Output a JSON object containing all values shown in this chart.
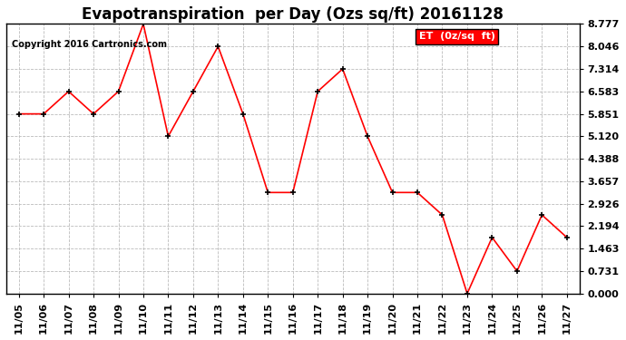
{
  "title": "Evapotranspiration  per Day (Ozs sq/ft) 20161128",
  "copyright": "Copyright 2016 Cartronics.com",
  "legend_label": "ET  (0z/sq  ft)",
  "x_labels": [
    "11/05",
    "11/06",
    "11/07",
    "11/08",
    "11/09",
    "11/10",
    "11/11",
    "11/12",
    "11/13",
    "11/14",
    "11/15",
    "11/16",
    "11/17",
    "11/18",
    "11/19",
    "11/20",
    "11/21",
    "11/22",
    "11/23",
    "11/24",
    "11/25",
    "11/26",
    "11/27"
  ],
  "y_values": [
    5.851,
    5.851,
    6.583,
    5.851,
    6.583,
    8.777,
    5.12,
    6.583,
    8.046,
    5.851,
    3.291,
    3.291,
    6.583,
    7.314,
    5.12,
    3.291,
    3.291,
    2.56,
    0.0,
    1.828,
    0.731,
    2.56,
    1.828
  ],
  "y_ticks": [
    0.0,
    0.731,
    1.463,
    2.194,
    2.926,
    3.657,
    4.388,
    5.12,
    5.851,
    6.583,
    7.314,
    8.046,
    8.777
  ],
  "ylim": [
    0.0,
    8.777
  ],
  "line_color": "red",
  "marker_color": "black",
  "legend_bg": "red",
  "legend_text_color": "white",
  "bg_color": "white",
  "grid_color": "#bbbbbb",
  "title_fontsize": 12,
  "copyright_fontsize": 7,
  "tick_fontsize": 8,
  "legend_fontsize": 8
}
